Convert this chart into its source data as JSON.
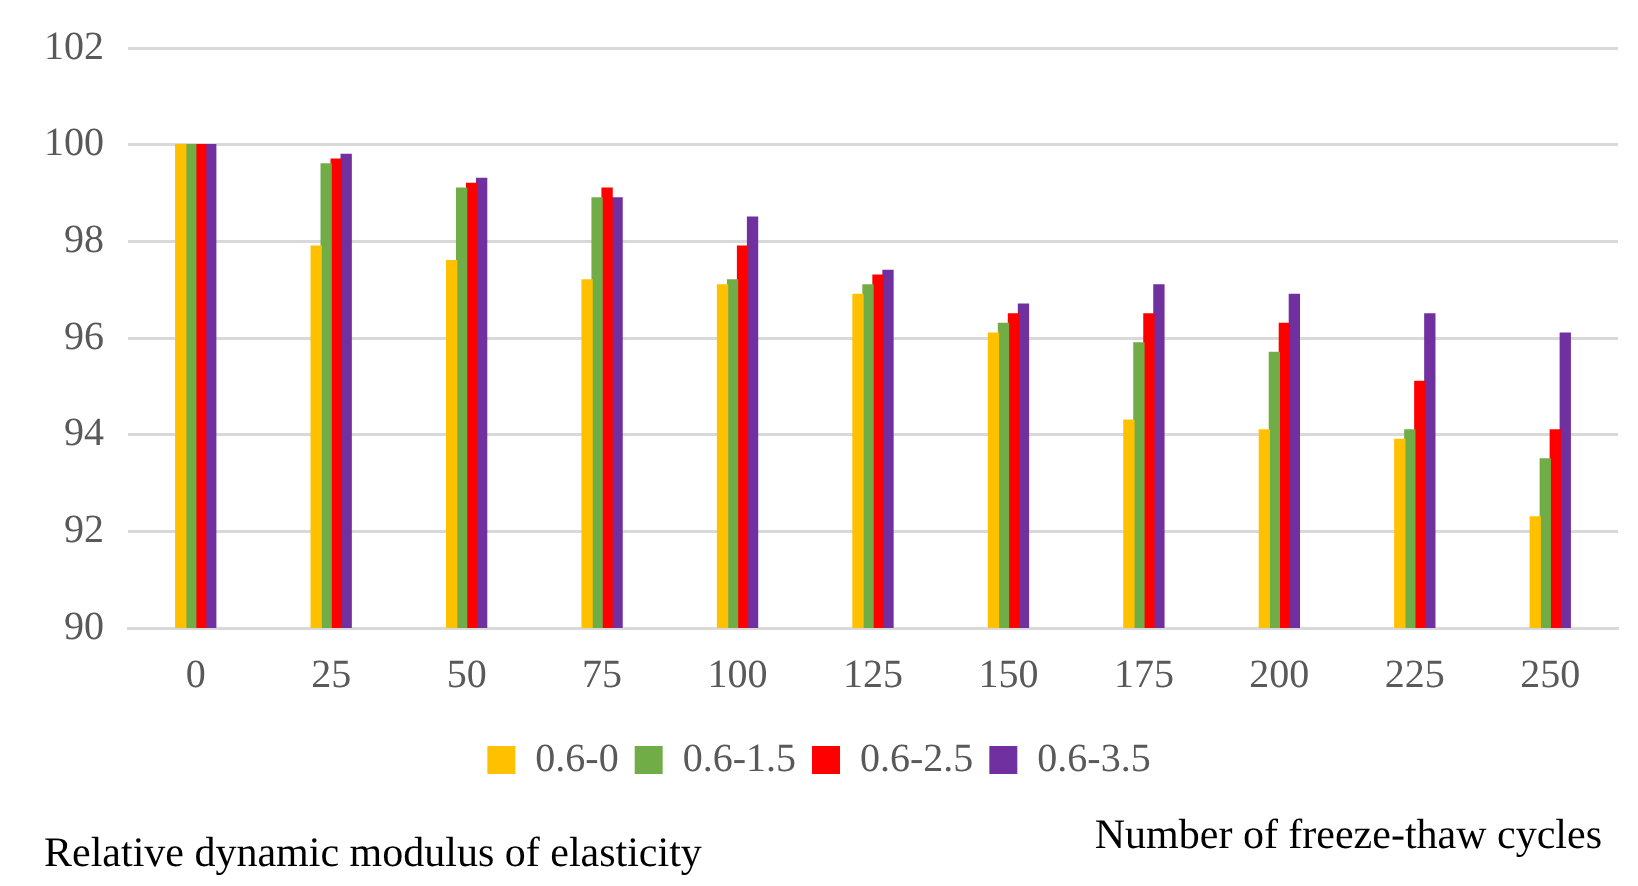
{
  "chart_data": {
    "type": "bar",
    "xlabel": "Number of freeze-thaw cycles",
    "ylabel": "Relative dynamic modulus of elasticity",
    "categories": [
      "0",
      "25",
      "50",
      "75",
      "100",
      "125",
      "150",
      "175",
      "200",
      "225",
      "250"
    ],
    "series": [
      {
        "name": "0.6-0",
        "color": "#ffc000",
        "values": [
          100,
          97.9,
          97.6,
          97.2,
          97.1,
          96.9,
          96.1,
          94.3,
          94.1,
          93.9,
          92.3
        ]
      },
      {
        "name": "0.6-1.5",
        "color": "#70ad47",
        "values": [
          100,
          99.6,
          99.1,
          98.9,
          97.2,
          97.1,
          96.3,
          95.9,
          95.7,
          94.1,
          93.5
        ]
      },
      {
        "name": "0.6-2.5",
        "color": "#ff0000",
        "values": [
          100,
          99.7,
          99.2,
          99.1,
          97.9,
          97.3,
          96.5,
          96.5,
          96.3,
          95.1,
          94.1
        ]
      },
      {
        "name": "0.6-3.5",
        "color": "#7030a0",
        "values": [
          100,
          99.8,
          99.3,
          98.9,
          98.5,
          97.4,
          96.7,
          97.1,
          96.9,
          96.5,
          96.1
        ]
      }
    ],
    "ylim": [
      90,
      102
    ],
    "yticks": [
      90,
      92,
      94,
      96,
      98,
      100,
      102
    ],
    "grid": "y",
    "legend": "bottom"
  }
}
